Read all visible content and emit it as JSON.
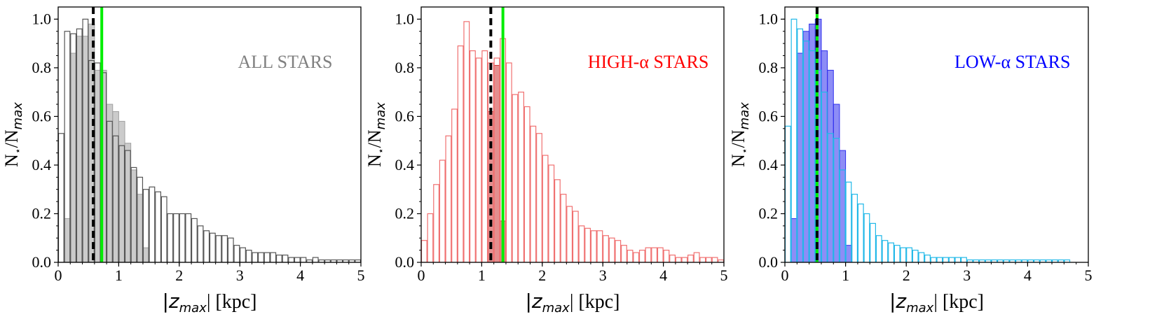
{
  "panels": [
    {
      "annotation": "ALL STARS",
      "annotation_color": "#808080",
      "xlabel_sym": "|z",
      "xlabel_sub": "max",
      "xlabel_unit": "| [kpc]",
      "ylabel_main": "N",
      "ylabel_star": "⋆",
      "ylabel_mid": "/N",
      "ylabel_sub": "max"
    },
    {
      "annotation": "HIGH-α STARS",
      "annotation_color": "#ff0000",
      "xlabel_sym": "|z",
      "xlabel_sub": "max",
      "xlabel_unit": "| [kpc]",
      "ylabel_main": "N",
      "ylabel_star": "⋆",
      "ylabel_mid": "/N",
      "ylabel_sub": "max"
    },
    {
      "annotation": "LOW-α STARS",
      "annotation_color": "#0000ff",
      "xlabel_sym": "|z",
      "xlabel_sub": "max",
      "xlabel_unit": "| [kpc]",
      "ylabel_main": "N",
      "ylabel_star": "⋆",
      "ylabel_mid": "/N",
      "ylabel_sub": "max"
    }
  ],
  "chart_data": [
    {
      "type": "histogram",
      "xlim": [
        0,
        5
      ],
      "ylim": [
        0,
        1.05
      ],
      "xticks": [
        0,
        1,
        2,
        3,
        4,
        5
      ],
      "yticks": [
        0.0,
        0.2,
        0.4,
        0.6,
        0.8,
        1.0
      ],
      "bin_width": 0.1,
      "outline_series": {
        "color": "#555555",
        "x0": 0.0,
        "values": [
          0.53,
          0.95,
          0.94,
          0.96,
          1.0,
          0.83,
          0.82,
          0.78,
          0.58,
          0.52,
          0.48,
          0.46,
          0.39,
          0.35,
          0.3,
          0.31,
          0.29,
          0.27,
          0.2,
          0.2,
          0.2,
          0.2,
          0.18,
          0.15,
          0.13,
          0.12,
          0.11,
          0.11,
          0.1,
          0.07,
          0.06,
          0.05,
          0.04,
          0.04,
          0.04,
          0.04,
          0.03,
          0.03,
          0.02,
          0.02,
          0.02,
          0.01,
          0.02,
          0.01,
          0.01,
          0.01,
          0.01,
          0.01,
          0.01,
          0.01
        ]
      },
      "filled_series": {
        "color": "#a0a0a0",
        "x0": 0.1,
        "values": [
          0.18,
          0.86,
          0.93,
          0.93,
          0.98,
          0.79,
          0.79,
          0.65,
          0.62,
          0.58,
          0.49,
          0.38,
          0.28,
          0.06
        ]
      },
      "vlines": [
        {
          "x": 0.58,
          "color": "#000000",
          "style": "dashed"
        },
        {
          "x": 0.72,
          "color": "#00ee00",
          "style": "solid"
        }
      ]
    },
    {
      "type": "histogram",
      "xlim": [
        0,
        5
      ],
      "ylim": [
        0,
        1.05
      ],
      "xticks": [
        0,
        1,
        2,
        3,
        4,
        5
      ],
      "yticks": [
        0.0,
        0.2,
        0.4,
        0.6,
        0.8,
        1.0
      ],
      "bin_width": 0.1,
      "outline_series": {
        "color": "#f07070",
        "x0": 0.0,
        "values": [
          0.09,
          0.2,
          0.32,
          0.42,
          0.52,
          0.63,
          0.89,
          0.99,
          0.87,
          0.84,
          0.87,
          0.82,
          0.84,
          0.92,
          0.82,
          0.69,
          0.7,
          0.64,
          0.56,
          0.53,
          0.44,
          0.4,
          0.34,
          0.28,
          0.23,
          0.21,
          0.15,
          0.14,
          0.13,
          0.13,
          0.11,
          0.1,
          0.09,
          0.07,
          0.05,
          0.04,
          0.05,
          0.06,
          0.06,
          0.06,
          0.05,
          0.03,
          0.02,
          0.02,
          0.03,
          0.04,
          0.02,
          0.02,
          0.02,
          0.01
        ]
      },
      "filled_series": {
        "color": "#cc3333",
        "x0": 1.1,
        "values": [
          0.62,
          0.81,
          0.17
        ]
      },
      "vlines": [
        {
          "x": 1.15,
          "color": "#000000",
          "style": "dashed"
        },
        {
          "x": 1.35,
          "color": "#00ee00",
          "style": "solid"
        }
      ]
    },
    {
      "type": "histogram",
      "xlim": [
        0,
        5
      ],
      "ylim": [
        0,
        1.05
      ],
      "xticks": [
        0,
        1,
        2,
        3,
        4,
        5
      ],
      "yticks": [
        0.0,
        0.2,
        0.4,
        0.6,
        0.8,
        1.0
      ],
      "bin_width": 0.1,
      "outline_series": {
        "color": "#20b8e8",
        "x0": 0.0,
        "values": [
          0.56,
          1.0,
          0.96,
          0.91,
          0.87,
          0.79,
          0.7,
          0.53,
          0.51,
          0.38,
          0.33,
          0.28,
          0.24,
          0.2,
          0.16,
          0.11,
          0.09,
          0.08,
          0.07,
          0.06,
          0.06,
          0.05,
          0.04,
          0.03,
          0.02,
          0.02,
          0.02,
          0.02,
          0.02,
          0.02,
          0.01,
          0.01,
          0.01,
          0.01,
          0.01,
          0.01,
          0.01,
          0.01,
          0.01,
          0.01,
          0.01,
          0.01,
          0.01,
          0.01,
          0.01,
          0.01,
          0.01
        ]
      },
      "filled_series": {
        "color": "#3030ee",
        "x0": 0.1,
        "values": [
          0.18,
          0.86,
          0.95,
          0.98,
          1.0,
          0.87,
          0.79,
          0.65,
          0.46,
          0.07
        ]
      },
      "vlines": [
        {
          "x": 0.53,
          "color": "#00ee00",
          "style": "solid"
        },
        {
          "x": 0.53,
          "color": "#000000",
          "style": "dashed"
        }
      ]
    }
  ]
}
